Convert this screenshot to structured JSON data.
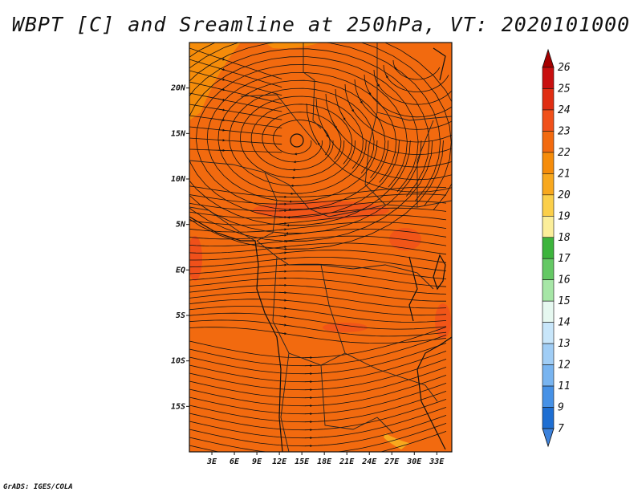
{
  "title": "WBPT [C] and Sreamline at 250hPa, VT: 2020101000",
  "credit": "GrADS: IGES/COLA",
  "map": {
    "lon_range": [
      0,
      35
    ],
    "lat_range": [
      -20,
      25
    ],
    "x_ticks": [
      "3E",
      "6E",
      "9E",
      "12E",
      "15E",
      "18E",
      "21E",
      "24E",
      "27E",
      "30E",
      "33E"
    ],
    "x_tick_values": [
      3,
      6,
      9,
      12,
      15,
      18,
      21,
      24,
      27,
      30,
      33
    ],
    "y_ticks": [
      "20N",
      "15N",
      "10N",
      "5N",
      "EQ",
      "5S",
      "10S",
      "15S"
    ],
    "y_tick_values": [
      20,
      15,
      10,
      5,
      0,
      -5,
      -10,
      -15
    ],
    "background_color": "#f26a0f",
    "field": "wet-bulb potential temperature",
    "overlay": "250hPa streamlines"
  },
  "colorbar": {
    "labels": [
      "26",
      "25",
      "24",
      "23",
      "22",
      "21",
      "20",
      "19",
      "18",
      "17",
      "16",
      "15",
      "14",
      "13",
      "12",
      "11",
      "9",
      "7"
    ],
    "colors": [
      "#a50000",
      "#c80f0f",
      "#e02d12",
      "#f0501a",
      "#f26a0f",
      "#f58c0a",
      "#f8a81e",
      "#fbcf4a",
      "#fbee9a",
      "#3cb43c",
      "#64c864",
      "#a6e6a6",
      "#e6f8f0",
      "#c8e6fa",
      "#a0cdf5",
      "#78b4f0",
      "#4691e6",
      "#1e6ed2",
      "#3c82dc"
    ]
  }
}
